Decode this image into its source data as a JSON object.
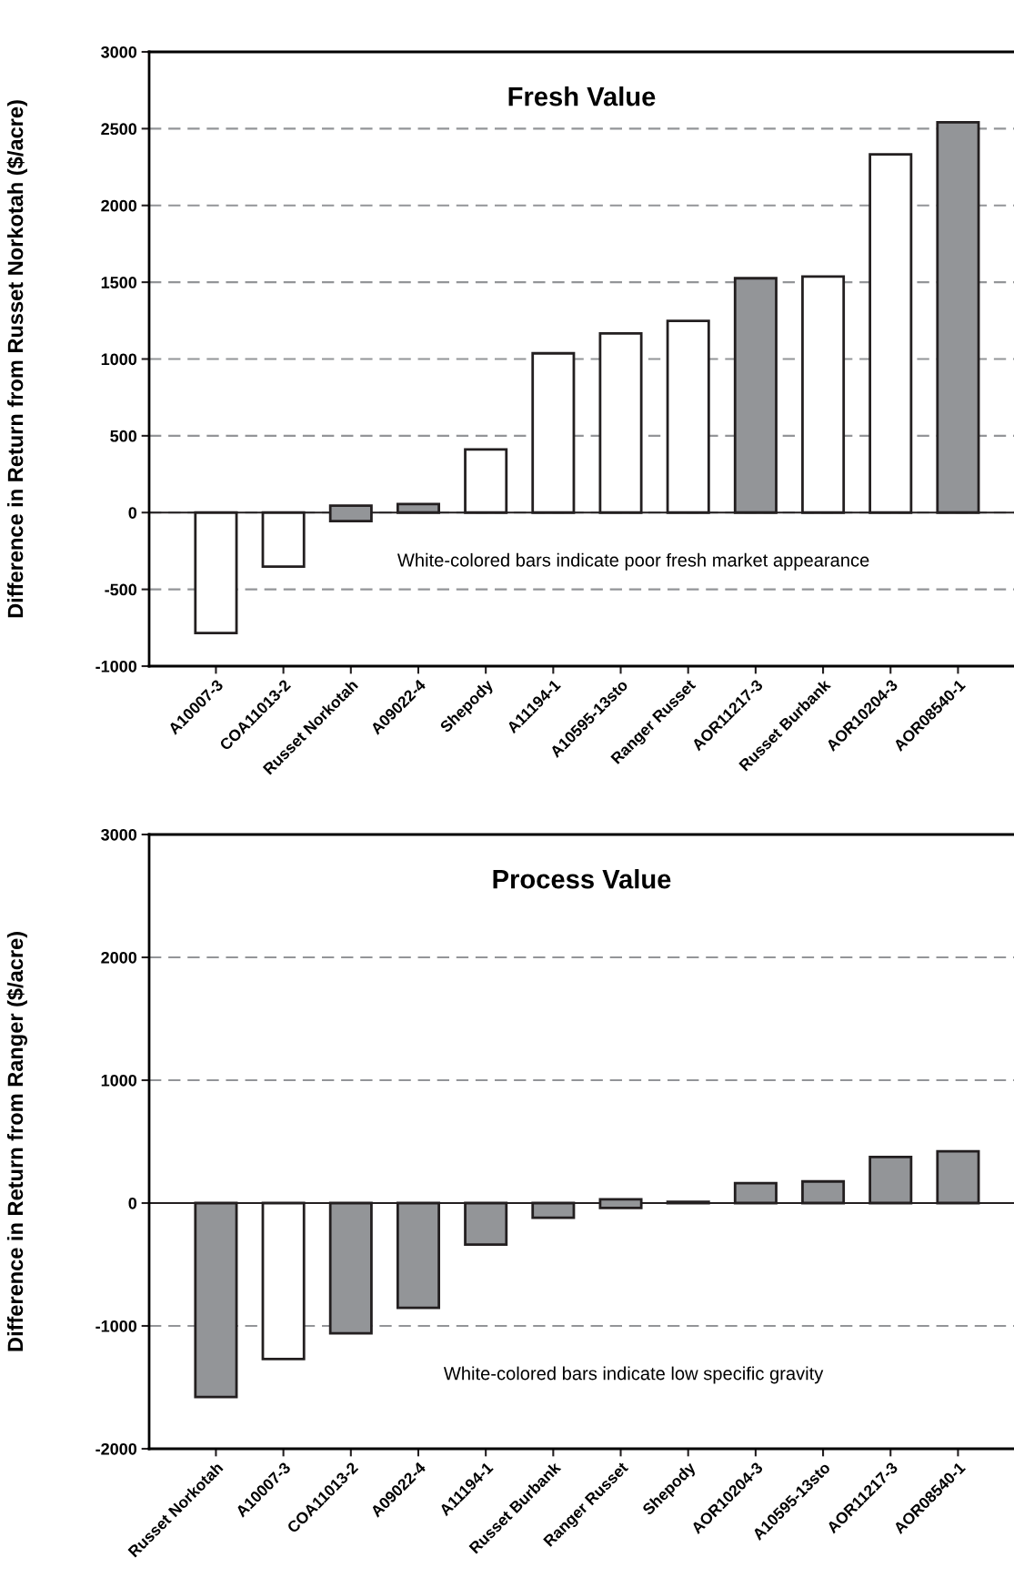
{
  "chart_data": [
    {
      "type": "bar",
      "title": "Fresh Value",
      "ylabel": "Difference in Return from Russet Norkotah ($/acre)",
      "categories": [
        "A10007-3",
        "COA11013-2",
        "Russet Norkotah",
        "A09022-4",
        "Shepody",
        "A11194-1",
        "A10595-13sto",
        "Ranger Russet",
        "AOR11217-3",
        "Russet Burbank",
        "AOR10204-3",
        "AOR08540-1"
      ],
      "values": [
        -785,
        -352,
        100,
        56,
        411,
        1037,
        1167,
        1248,
        1526,
        1537,
        2333,
        2541
      ],
      "base": [
        0,
        0,
        -55,
        0,
        0,
        0,
        0,
        0,
        0,
        0,
        0,
        0
      ],
      "colors": [
        "#ffffff",
        "#ffffff",
        "#939598",
        "#939598",
        "#ffffff",
        "#ffffff",
        "#ffffff",
        "#ffffff",
        "#939598",
        "#ffffff",
        "#ffffff",
        "#939598"
      ],
      "ylim": [
        -1000,
        3000
      ],
      "yticks": [
        -1000,
        -500,
        0,
        500,
        1000,
        1500,
        2000,
        2500,
        3000
      ],
      "grid": "y",
      "annotations": [
        "White-colored bars indicate poor fresh market appearance"
      ]
    },
    {
      "type": "bar",
      "title": "Process Value",
      "ylabel": "Difference in Return from Ranger ($/acre)",
      "categories": [
        "Russet Norkotah",
        "A10007-3",
        "COA11013-2",
        "A09022-4",
        "A11194-1",
        "Russet Burbank",
        "Ranger Russet",
        "Shepody",
        "AOR10204-3",
        "A10595-13sto",
        "AOR11217-3",
        "AOR08540-1"
      ],
      "values": [
        -1579,
        -1269,
        -1060,
        -852,
        -338,
        -120,
        70,
        10,
        162,
        176,
        375,
        421
      ],
      "base": [
        0,
        0,
        0,
        0,
        0,
        0,
        -40,
        0,
        0,
        0,
        0,
        0
      ],
      "colors": [
        "#939598",
        "#ffffff",
        "#939598",
        "#939598",
        "#939598",
        "#939598",
        "#939598",
        "#939598",
        "#939598",
        "#939598",
        "#939598",
        "#939598"
      ],
      "ylim": [
        -2000,
        3000
      ],
      "yticks": [
        -2000,
        -1000,
        0,
        1000,
        2000,
        3000
      ],
      "grid": "y",
      "annotations": [
        "White-colored bars indicate low specific gravity"
      ]
    }
  ]
}
